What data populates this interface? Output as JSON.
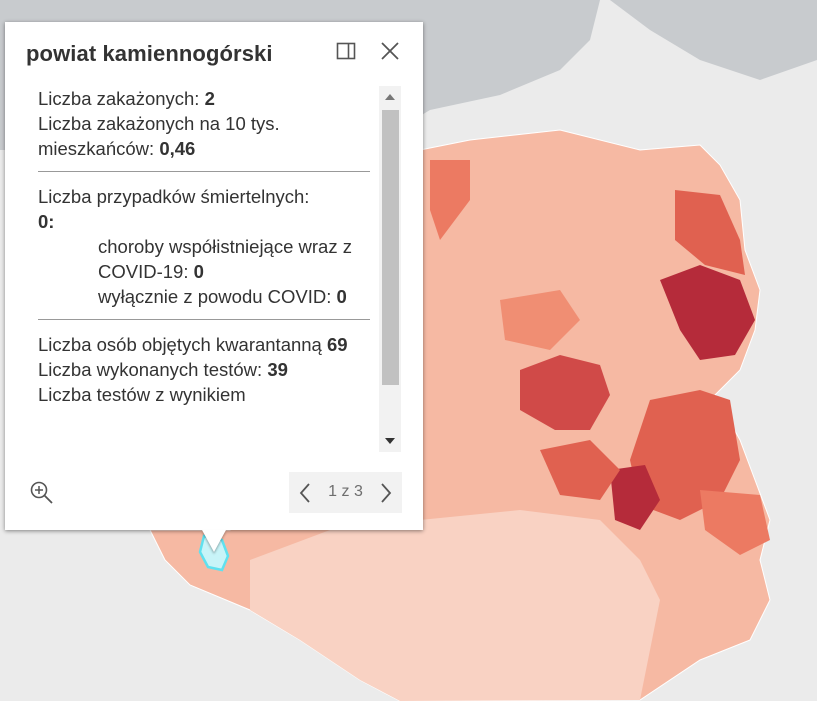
{
  "popup": {
    "title": "powiat kamiennogórski",
    "infections_label": "Liczba zakażonych: ",
    "infections_value": "2",
    "per10k_label": "Liczba zakażonych na 10 tys. mieszkańców: ",
    "per10k_value": "0,46",
    "deaths_label": "Liczba przypadków śmiertelnych:",
    "deaths_value": "0:",
    "comorbid_label": "choroby współistniejące wraz z COVID-19: ",
    "comorbid_value": "0",
    "covid_only_label": "wyłącznie z powodu COVID: ",
    "covid_only_value": "0",
    "quarantine_label": "Liczba osób objętych kwarantanną ",
    "quarantine_value": "69",
    "tests_label": "Liczba wykonanych testów: ",
    "tests_value": "39",
    "tests_result_label": "Liczba testów z wynikiem"
  },
  "pager": {
    "text": "1 z 3"
  },
  "icons": {
    "dock": "dock-icon",
    "close": "close-icon",
    "zoom": "zoom-to-icon",
    "prev": "chevron-left-icon",
    "next": "chevron-right-icon",
    "scroll_up": "scroll-up-icon",
    "scroll_down": "scroll-down-icon"
  },
  "colors": {
    "sea": "#c8cbce",
    "land_outside": "#ebebeb",
    "choropleth_low": "#fbe3d9",
    "choropleth_mid": "#f4a085",
    "choropleth_high": "#e06150",
    "choropleth_max": "#b52b3a",
    "highlight": "#5fe1ef"
  }
}
